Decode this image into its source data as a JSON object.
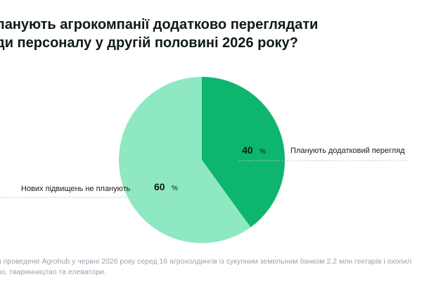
{
  "title": {
    "line1": "ланують агрокомпанії додатково переглядати",
    "line2": "ди персоналу у другій половині 2026 року?"
  },
  "chart_data": {
    "type": "pie",
    "slices": [
      {
        "label": "Планують додатковий перегляд",
        "value": 40,
        "unit": "%",
        "color": "#0db56f"
      },
      {
        "label": "Нових підвищень не планують",
        "value": 60,
        "unit": "%",
        "color": "#8ee8c1"
      }
    ]
  },
  "footnote": {
    "line1": "я проведене Agrohub у червні 2026 року серед 16 агрохолдингів із сукупним земельним банком 2,2 млн гектарів і охопил",
    "line2": "во, тваринництво та елеватори."
  }
}
